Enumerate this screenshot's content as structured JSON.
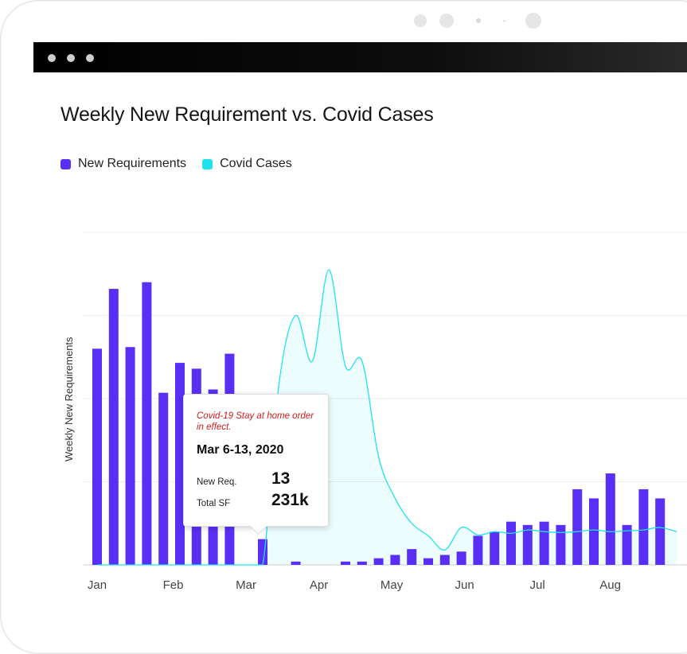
{
  "window": {
    "controls": [
      "close-dot",
      "minimize-dot",
      "maximize-dot"
    ]
  },
  "chart_data": {
    "type": "bar",
    "title": "Weekly New Requirement vs. Covid Cases",
    "ylabel": "Weekly New Requirements",
    "xlabel": "",
    "ylim": [
      0,
      400
    ],
    "grid": true,
    "legend_position": "top-left",
    "month_labels": [
      "Jan",
      "Feb",
      "Mar",
      "Apr",
      "May",
      "Jun",
      "Jul",
      "Aug"
    ],
    "series": [
      {
        "name": "New Requirements",
        "color": "#5a2ff5",
        "values": [
          260,
          332,
          262,
          340,
          207,
          243,
          236,
          211,
          254,
          0,
          31,
          0,
          4,
          0,
          0,
          4,
          4,
          8,
          12,
          19,
          8,
          12,
          16,
          35,
          40,
          52,
          48,
          52,
          48,
          91,
          80,
          110,
          48,
          91,
          80,
          0
        ]
      },
      {
        "name": "Covid Cases",
        "color": "#1ee3ee",
        "values": [
          0,
          0,
          0,
          0,
          0,
          0,
          0,
          0,
          0,
          0,
          0,
          220,
          300,
          245,
          355,
          239,
          245,
          130,
          80,
          50,
          35,
          18,
          45,
          36,
          40,
          38,
          42,
          40,
          39,
          40,
          42,
          40,
          41,
          42,
          45,
          40
        ]
      }
    ]
  },
  "tooltip": {
    "note": "Covid-19 Stay at home order in effect.",
    "date": "Mar 6-13, 2020",
    "rows": [
      {
        "label": "New Req.",
        "value": "13"
      },
      {
        "label": "Total SF",
        "value": "231k"
      }
    ]
  }
}
